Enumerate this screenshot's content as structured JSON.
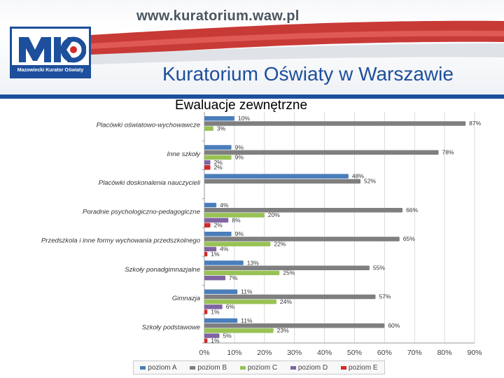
{
  "header": {
    "url": "www.kuratorium.waw.pl",
    "logo_letters": "MKO",
    "logo_caption": "Mazowiecki Kurator Oświaty",
    "org_name": "Kuratorium Oświaty w Warszawie"
  },
  "slide_title": "Ewaluacje zewnętrzne",
  "colors": {
    "brand_blue": "#1d4f9c",
    "brand_red": "#d42a2a"
  },
  "chart_data": {
    "type": "bar",
    "orientation": "horizontal",
    "grid": true,
    "legend_position": "bottom",
    "xlim": [
      0,
      90
    ],
    "x_ticks": [
      "0%",
      "10%",
      "20%",
      "30%",
      "40%",
      "50%",
      "60%",
      "70%",
      "80%",
      "90%"
    ],
    "categories": [
      "Placówki oświatowo-wychowawcze",
      "Inne szkoły",
      "Placówki doskonalenia nauczycieli",
      "Poradnie psychologiczno-pedagogiczne",
      "Przedszkola i inne formy wychowania przedszkolnego",
      "Szkoły ponadgimnazjalne",
      "Gimnazja",
      "Szkoły podstawowe"
    ],
    "series": [
      {
        "name": "poziom A",
        "color": "#4a7ebb",
        "values": [
          10,
          9,
          48,
          4,
          9,
          13,
          11,
          11
        ]
      },
      {
        "name": "poziom B",
        "color": "#7f7f7f",
        "values": [
          87,
          78,
          52,
          66,
          65,
          55,
          57,
          60
        ]
      },
      {
        "name": "poziom C",
        "color": "#98c255",
        "values": [
          3,
          9,
          null,
          20,
          22,
          25,
          24,
          23
        ]
      },
      {
        "name": "poziom D",
        "color": "#8064a2",
        "values": [
          null,
          2,
          null,
          8,
          4,
          7,
          6,
          5
        ]
      },
      {
        "name": "poziom E",
        "color": "#d42a2a",
        "values": [
          null,
          2,
          null,
          2,
          1,
          null,
          1,
          1
        ]
      }
    ]
  }
}
